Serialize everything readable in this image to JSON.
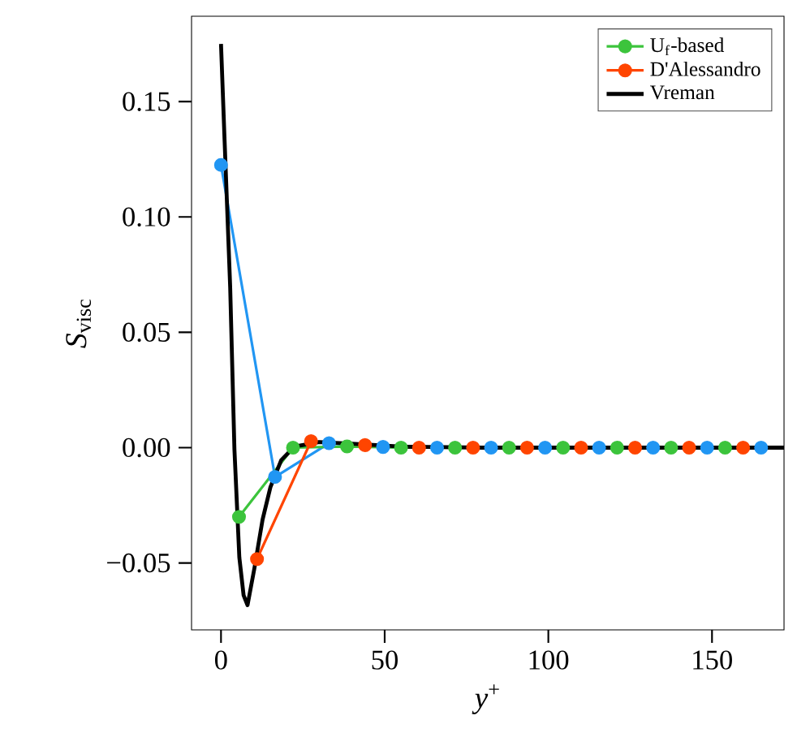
{
  "chart_data": {
    "type": "line",
    "xlabel": "*y*$^{+}$",
    "ylabel": "*S*$_{visc}$",
    "xlim": [
      -9,
      172
    ],
    "ylim": [
      -0.079,
      0.187
    ],
    "xticks": [
      0,
      50,
      100,
      150
    ],
    "yticks": [
      {
        "value": -0.05,
        "label": "−0.05"
      },
      {
        "value": 0,
        "label": "0.00"
      },
      {
        "value": 0.05,
        "label": "0.05"
      },
      {
        "value": 0.1,
        "label": "0.10"
      },
      {
        "value": 0.15,
        "label": "0.15"
      }
    ],
    "legend": "top right",
    "grid": false,
    "series": [
      {
        "color": "#2196f3",
        "marker": "circle",
        "x": [
          0,
          16.5,
          33,
          49.5,
          66,
          82.5,
          99,
          115.5,
          132,
          148.5,
          165
        ],
        "values": [
          0.1225,
          -0.0127,
          0.0019,
          0.0003,
          0,
          0,
          0,
          0,
          0,
          0,
          0
        ]
      },
      {
        "name": "U$_{f}$-based",
        "color": "#3cc43c",
        "marker": "circle",
        "x": [
          5.5,
          22,
          38.5,
          55,
          71.5,
          88,
          104.5,
          121,
          137.5,
          154
        ],
        "values": [
          -0.03,
          0.0,
          0.0005,
          0,
          0,
          0,
          0,
          0,
          0,
          0
        ]
      },
      {
        "name": "D'Alessandro",
        "color": "#ff4500",
        "marker": "circle",
        "x": [
          11,
          27.5,
          44,
          60.5,
          77,
          93.5,
          110,
          126.5,
          143,
          159.5
        ],
        "values": [
          -0.0483,
          0.0028,
          0.0011,
          0,
          0,
          0,
          0,
          0,
          0,
          0
        ]
      },
      {
        "name": "Vreman",
        "color": "#000000",
        "marker": "none",
        "x": [
          0,
          1.1,
          2.8,
          4.1,
          5.6,
          6.9,
          8.1,
          10.2,
          12.7,
          15.1,
          18.4,
          22.5,
          30,
          39.9,
          56,
          80,
          120,
          172
        ],
        "values": [
          0.175,
          0.133,
          0.0697,
          -0.0007,
          -0.0476,
          -0.064,
          -0.0683,
          -0.0523,
          -0.0312,
          -0.0171,
          -0.0054,
          0.0005,
          0.0024,
          0.0017,
          0.0004,
          0,
          0,
          0
        ]
      }
    ]
  }
}
